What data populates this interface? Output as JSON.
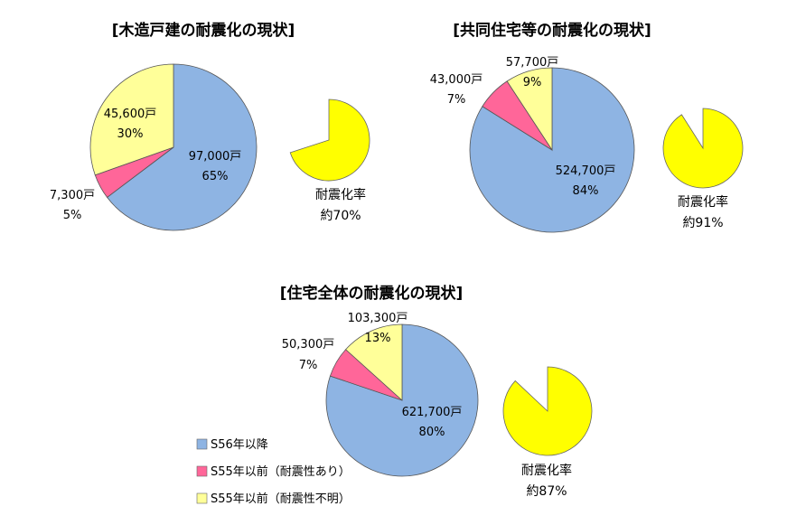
{
  "colors": {
    "after_s56": "#8EB4E3",
    "before_s55_resistant": "#FF6699",
    "before_s55_unknown": "#FFFF99",
    "rate_fill": "#FFFF00"
  },
  "legend": [
    {
      "label": "S56年以降",
      "color": "#8EB4E3"
    },
    {
      "label": "S55年以前（耐震性あり）",
      "color": "#FF6699"
    },
    {
      "label": "S55年以前（耐震性不明）",
      "color": "#FFFF99"
    }
  ],
  "chart_data": [
    {
      "type": "pie",
      "title": "[木造戸建の耐震化の現状]",
      "slices": [
        {
          "value": 97000,
          "count_label": "97,000戸",
          "pct_label": "65%",
          "color": "#8EB4E3"
        },
        {
          "value": 7300,
          "count_label": "7,300戸",
          "pct_label": "5%",
          "color": "#FF6699"
        },
        {
          "value": 45600,
          "count_label": "45,600戸",
          "pct_label": "30%",
          "color": "#FFFF99"
        }
      ],
      "rate": {
        "value": 70,
        "label1": "耐震化率",
        "label2": "約70%"
      }
    },
    {
      "type": "pie",
      "title": "[共同住宅等の耐震化の現状]",
      "slices": [
        {
          "value": 524700,
          "count_label": "524,700戸",
          "pct_label": "84%",
          "color": "#8EB4E3"
        },
        {
          "value": 43000,
          "count_label": "43,000戸",
          "pct_label": "7%",
          "color": "#FF6699"
        },
        {
          "value": 57700,
          "count_label": "57,700戸",
          "pct_label": "9%",
          "color": "#FFFF99"
        }
      ],
      "rate": {
        "value": 91,
        "label1": "耐震化率",
        "label2": "約91%"
      }
    },
    {
      "type": "pie",
      "title": "[住宅全体の耐震化の現状]",
      "slices": [
        {
          "value": 621700,
          "count_label": "621,700戸",
          "pct_label": "80%",
          "color": "#8EB4E3"
        },
        {
          "value": 50300,
          "count_label": "50,300戸",
          "pct_label": "7%",
          "color": "#FF6699"
        },
        {
          "value": 103300,
          "count_label": "103,300戸",
          "pct_label": "13%",
          "color": "#FFFF99"
        }
      ],
      "rate": {
        "value": 87,
        "label1": "耐震化率",
        "label2": "約87%"
      }
    }
  ]
}
